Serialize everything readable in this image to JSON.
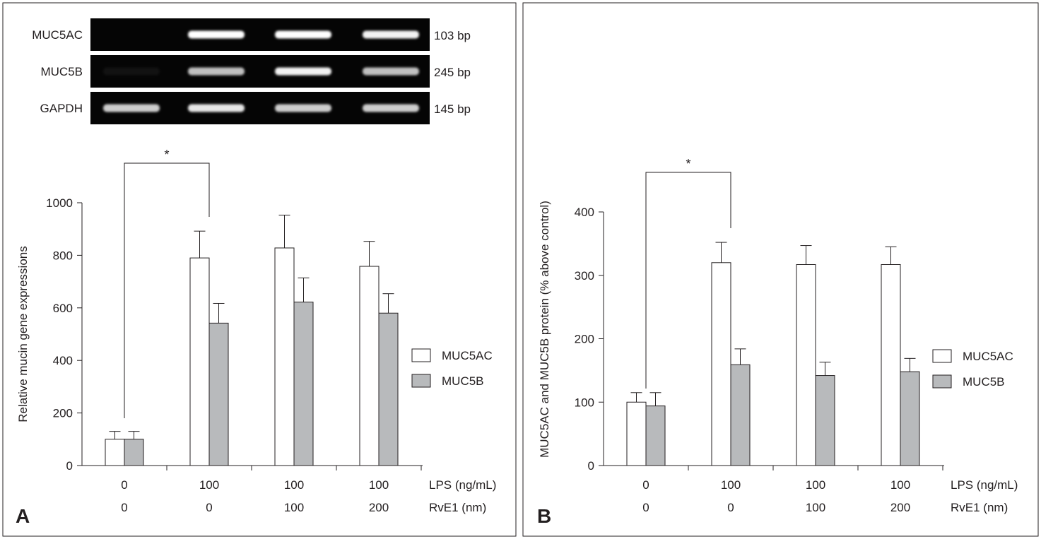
{
  "chart_data": [
    {
      "panel": "A",
      "type": "bar",
      "gel": {
        "rows": [
          {
            "label": "MUC5AC",
            "size": "103 bp",
            "intensities": [
              0.0,
              1.0,
              1.0,
              0.95
            ]
          },
          {
            "label": "MUC5B",
            "size": "245 bp",
            "intensities": [
              0.05,
              0.75,
              0.95,
              0.75
            ]
          },
          {
            "label": "GAPDH",
            "size": "145 bp",
            "intensities": [
              0.8,
              0.9,
              0.8,
              0.8
            ]
          }
        ]
      },
      "ylabel": "Relative mucin gene expressions",
      "ylim": [
        0,
        1000
      ],
      "yticks": [
        0,
        200,
        400,
        600,
        800,
        1000
      ],
      "groups": [
        {
          "lps": "0",
          "rve1": "0"
        },
        {
          "lps": "100",
          "rve1": "0"
        },
        {
          "lps": "100",
          "rve1": "100"
        },
        {
          "lps": "100",
          "rve1": "200"
        }
      ],
      "row_labels": [
        "LPS (ng/mL)",
        "RvE1 (nm)"
      ],
      "series": [
        {
          "name": "MUC5AC",
          "values": [
            100,
            790,
            828,
            758
          ],
          "errors": [
            30,
            102,
            125,
            95
          ]
        },
        {
          "name": "MUC5B",
          "values": [
            100,
            542,
            622,
            580
          ],
          "errors": [
            30,
            75,
            92,
            74
          ]
        }
      ],
      "significance": {
        "from_group": 0,
        "to_group": 1,
        "symbol": "*"
      },
      "legend_position": "right"
    },
    {
      "panel": "B",
      "type": "bar",
      "ylabel": "MUC5AC and MUC5B protein (% above control)",
      "ylim": [
        0,
        400
      ],
      "yticks": [
        0,
        100,
        200,
        300,
        400
      ],
      "groups": [
        {
          "lps": "0",
          "rve1": "0"
        },
        {
          "lps": "100",
          "rve1": "0"
        },
        {
          "lps": "100",
          "rve1": "100"
        },
        {
          "lps": "100",
          "rve1": "200"
        }
      ],
      "row_labels": [
        "LPS (ng/mL)",
        "RvE1 (nm)"
      ],
      "series": [
        {
          "name": "MUC5AC",
          "values": [
            100,
            320,
            317,
            317
          ],
          "errors": [
            15,
            32,
            30,
            28
          ]
        },
        {
          "name": "MUC5B",
          "values": [
            94,
            159,
            142,
            148
          ],
          "errors": [
            21,
            25,
            21,
            21
          ]
        }
      ],
      "significance": {
        "from_group": 0,
        "to_group": 1,
        "symbol": "*"
      },
      "legend_position": "right"
    }
  ],
  "colors": {
    "muc5ac_fill": "#ffffff",
    "muc5b_fill": "#b8babc",
    "ink": "#231f20",
    "gel_background": "#050505",
    "band": "#ffffff"
  }
}
